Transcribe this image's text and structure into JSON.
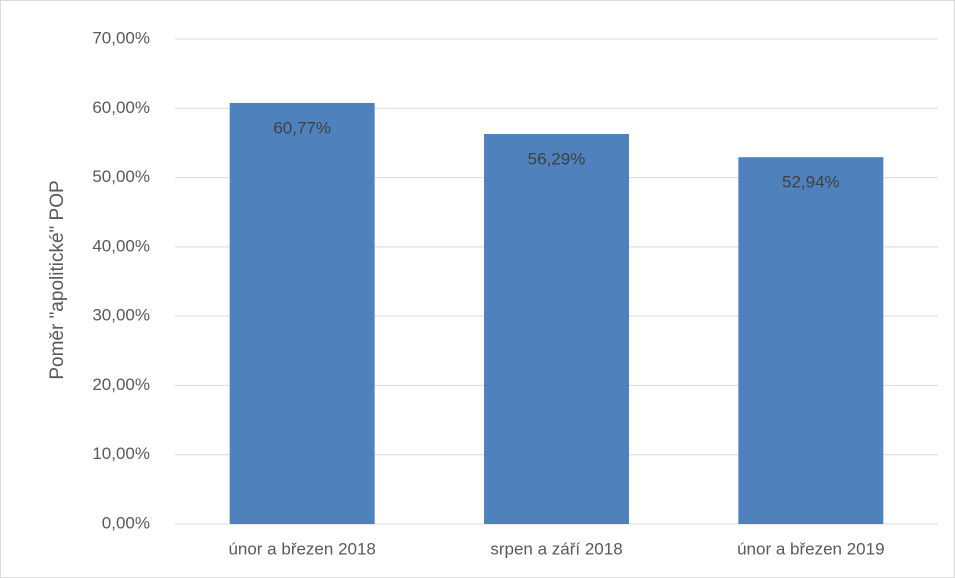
{
  "chart_data": {
    "type": "bar",
    "y_label": "Poměr \"apolitické\" POP",
    "categories": [
      "únor a březen 2018",
      "srpen a září 2018",
      "únor a březen 2019"
    ],
    "values": [
      60.77,
      56.29,
      52.94
    ],
    "value_labels": [
      "60,77%",
      "56,29%",
      "52,94%"
    ],
    "color": "#4f81bd",
    "ylim": [
      0,
      70
    ],
    "yticks": [
      {
        "value": 0,
        "label": "0,00%"
      },
      {
        "value": 10,
        "label": "10,00%"
      },
      {
        "value": 20,
        "label": "20,00%"
      },
      {
        "value": 30,
        "label": "30,00%"
      },
      {
        "value": 40,
        "label": "40,00%"
      },
      {
        "value": 50,
        "label": "50,00%"
      },
      {
        "value": 60,
        "label": "60,00%"
      },
      {
        "value": 70,
        "label": "70,00%"
      }
    ],
    "grid": true
  }
}
